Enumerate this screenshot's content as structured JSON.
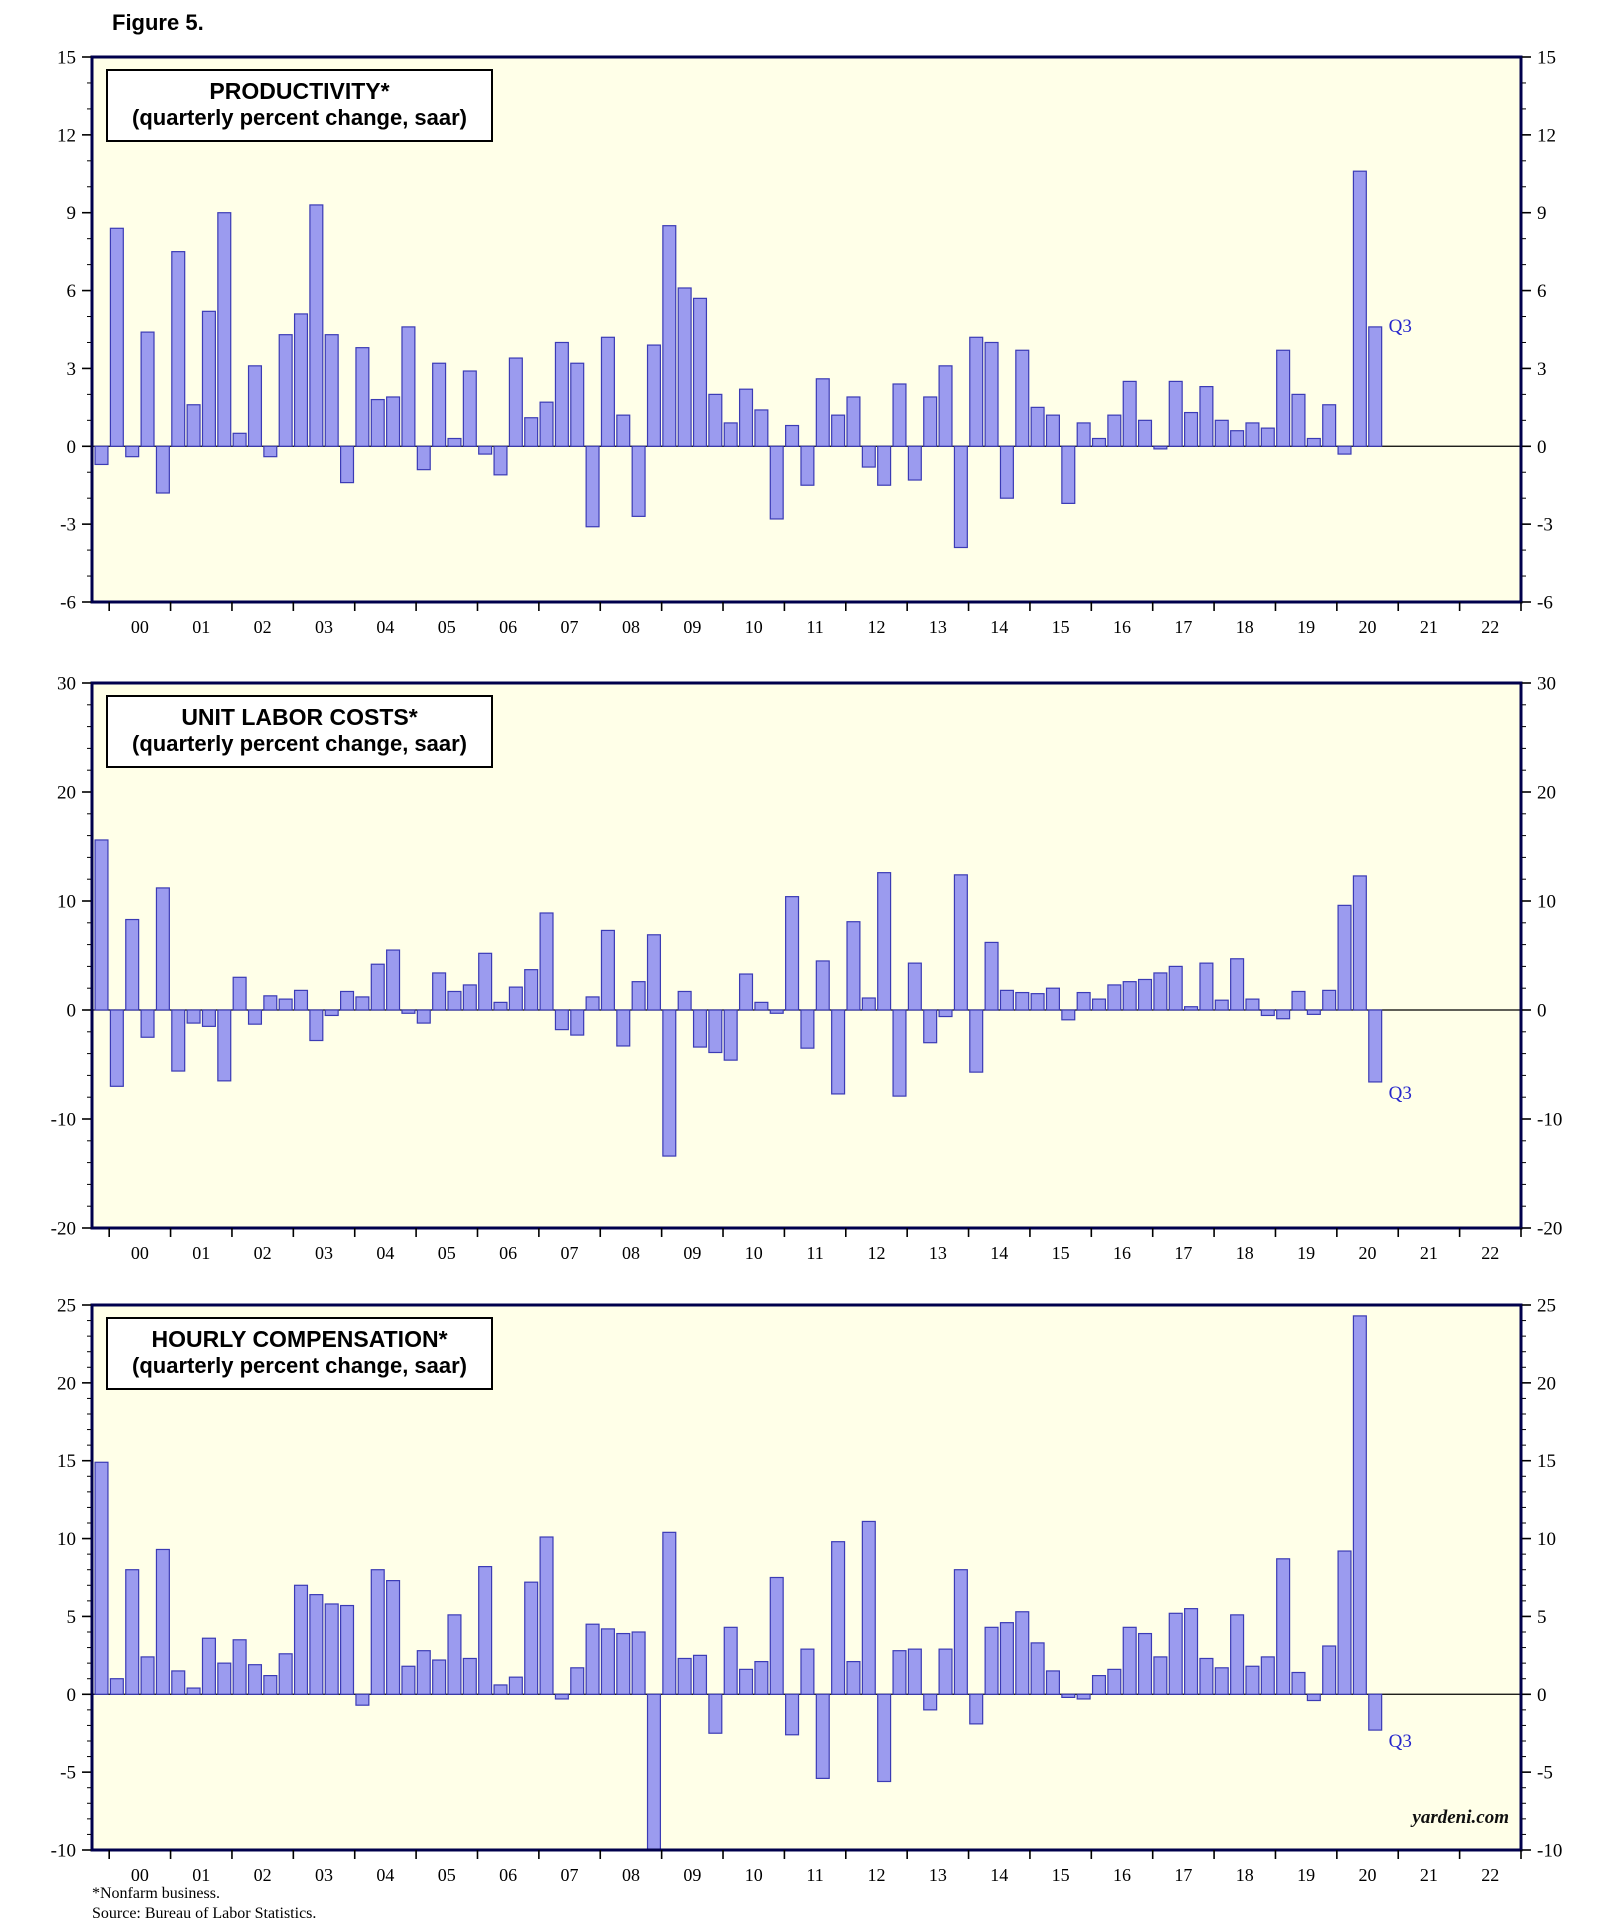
{
  "figure_label": "Figure 5.",
  "watermark": "yardeni.com",
  "footnotes": {
    "line1": "*Nonfarm business.",
    "line2": "Source: Bureau of Labor Statistics."
  },
  "colors": {
    "plot_bg": "#FFFFE8",
    "frame": "#00004C",
    "bar_fill": "#9B9BEF",
    "bar_stroke": "#3B3BB5",
    "annotation_blue": "#2626CC",
    "axis_text": "#000000"
  },
  "x_axis": {
    "domain_start": 1999.72,
    "domain_end": 2023,
    "year_tick_start": 2000,
    "year_tick_end": 2023,
    "year_labels": [
      "00",
      "01",
      "02",
      "03",
      "04",
      "05",
      "06",
      "07",
      "08",
      "09",
      "10",
      "11",
      "12",
      "13",
      "14",
      "15",
      "16",
      "17",
      "18",
      "19",
      "20",
      "21",
      "22"
    ]
  },
  "chart_data": [
    {
      "type": "bar",
      "title": "PRODUCTIVITY*",
      "subtitle": "(quarterly percent change, saar)",
      "ylim": [
        -6,
        15
      ],
      "yticks": [
        -6,
        -3,
        0,
        3,
        6,
        9,
        12,
        15
      ],
      "minor_tick_step": 1,
      "x_start": 1999.75,
      "bar_step_years": 0.25,
      "last_point_label": "Q3",
      "values": [
        -0.7,
        8.4,
        -0.4,
        4.4,
        -1.8,
        7.5,
        1.6,
        5.2,
        9.0,
        0.5,
        3.1,
        -0.4,
        4.3,
        5.1,
        9.3,
        4.3,
        -1.4,
        3.8,
        1.8,
        1.9,
        4.6,
        -0.9,
        3.2,
        0.3,
        2.9,
        -0.3,
        -1.1,
        3.4,
        1.1,
        1.7,
        4.0,
        3.2,
        -3.1,
        4.2,
        1.2,
        -2.7,
        3.9,
        8.5,
        6.1,
        5.7,
        2.0,
        0.9,
        2.2,
        1.4,
        -2.8,
        0.8,
        -1.5,
        2.6,
        1.2,
        1.9,
        -0.8,
        -1.5,
        2.4,
        -1.3,
        1.9,
        3.1,
        -3.9,
        4.2,
        4.0,
        -2.0,
        3.7,
        1.5,
        1.2,
        -2.2,
        0.9,
        0.3,
        1.2,
        2.5,
        1.0,
        -0.1,
        2.5,
        1.3,
        2.3,
        1.0,
        0.6,
        0.9,
        0.7,
        3.7,
        2.0,
        0.3,
        1.6,
        -0.3,
        10.6,
        4.6
      ]
    },
    {
      "type": "bar",
      "title": "UNIT LABOR COSTS*",
      "subtitle": "(quarterly percent change, saar)",
      "ylim": [
        -20,
        30
      ],
      "yticks": [
        -20,
        -10,
        0,
        10,
        20,
        30
      ],
      "minor_tick_step": 2,
      "x_start": 1999.75,
      "bar_step_years": 0.25,
      "last_point_label": "Q3",
      "values": [
        15.6,
        -7.0,
        8.3,
        -2.5,
        11.2,
        -5.6,
        -1.2,
        -1.5,
        -6.5,
        3.0,
        -1.3,
        1.3,
        1.0,
        1.8,
        -2.8,
        -0.5,
        1.7,
        1.2,
        4.2,
        5.5,
        -0.3,
        -1.2,
        3.4,
        1.7,
        2.3,
        5.2,
        0.7,
        2.1,
        3.7,
        8.9,
        -1.8,
        -2.3,
        1.2,
        7.3,
        -3.3,
        2.6,
        6.9,
        -13.4,
        1.7,
        -3.4,
        -3.9,
        -4.6,
        3.3,
        0.7,
        -0.3,
        10.4,
        -3.5,
        4.5,
        -7.7,
        8.1,
        1.1,
        12.6,
        -7.9,
        4.3,
        -3.0,
        -0.6,
        12.4,
        -5.7,
        6.2,
        1.8,
        1.6,
        1.5,
        2.0,
        -0.9,
        1.6,
        1.0,
        2.3,
        2.6,
        2.8,
        3.4,
        4.0,
        0.3,
        4.3,
        0.9,
        4.7,
        1.0,
        -0.5,
        -0.8,
        1.7,
        -0.4,
        1.8,
        9.6,
        12.3,
        -6.6
      ]
    },
    {
      "type": "bar",
      "title": "HOURLY COMPENSATION*",
      "subtitle": "(quarterly percent change, saar)",
      "ylim": [
        -10,
        25
      ],
      "yticks": [
        -10,
        -5,
        0,
        5,
        10,
        15,
        20,
        25
      ],
      "minor_tick_step": 1,
      "x_start": 1999.75,
      "bar_step_years": 0.25,
      "last_point_label": "Q3",
      "values": [
        14.9,
        1.0,
        8.0,
        2.4,
        9.3,
        1.5,
        0.4,
        3.6,
        2.0,
        3.5,
        1.9,
        1.2,
        2.6,
        7.0,
        6.4,
        5.8,
        5.7,
        -0.7,
        8.0,
        7.3,
        1.8,
        2.8,
        2.2,
        5.1,
        2.3,
        8.2,
        0.6,
        1.1,
        7.2,
        10.1,
        -0.3,
        1.7,
        4.5,
        4.2,
        3.9,
        4.0,
        -10.2,
        10.4,
        2.3,
        2.5,
        -2.5,
        4.3,
        1.6,
        2.1,
        7.5,
        -2.6,
        2.9,
        -5.4,
        9.8,
        2.1,
        11.1,
        -5.6,
        2.8,
        2.9,
        -1.0,
        2.9,
        8.0,
        -1.9,
        4.3,
        4.6,
        5.3,
        3.3,
        1.5,
        -0.2,
        -0.3,
        1.2,
        1.6,
        4.3,
        3.9,
        2.4,
        5.2,
        5.5,
        2.3,
        1.7,
        5.1,
        1.8,
        2.4,
        8.7,
        1.4,
        -0.4,
        3.1,
        9.2,
        24.3,
        -2.3
      ]
    }
  ]
}
